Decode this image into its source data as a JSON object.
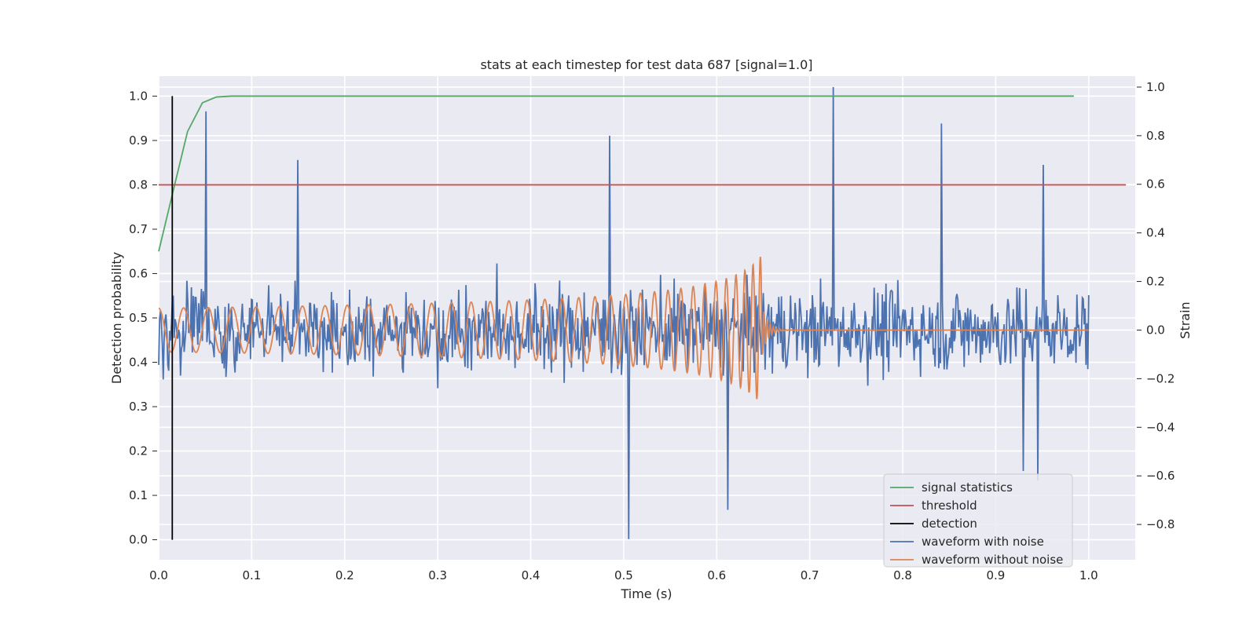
{
  "chart_data": {
    "type": "line",
    "title": "stats at each timestep for test data 687 [signal=1.0]",
    "xlabel": "Time (s)",
    "ylabel": "Detection probability",
    "y2label": "Strain",
    "xlim": [
      0.0,
      1.05
    ],
    "ylim": [
      -0.045,
      1.045
    ],
    "y2lim": [
      -0.945,
      1.045
    ],
    "xticks": [
      0.0,
      0.1,
      0.2,
      0.3,
      0.4,
      0.5,
      0.6,
      0.7,
      0.8,
      0.9,
      1.0
    ],
    "xtick_labels": [
      "0.0",
      "0.1",
      "0.2",
      "0.3",
      "0.4",
      "0.5",
      "0.6",
      "0.7",
      "0.8",
      "0.9",
      "1.0"
    ],
    "yticks": [
      0.0,
      0.1,
      0.2,
      0.3,
      0.4,
      0.5,
      0.6,
      0.7,
      0.8,
      0.9,
      1.0
    ],
    "ytick_labels": [
      "0.0",
      "0.1",
      "0.2",
      "0.3",
      "0.4",
      "0.5",
      "0.6",
      "0.7",
      "0.8",
      "0.9",
      "1.0"
    ],
    "y2ticks": [
      -0.8,
      -0.6,
      -0.4,
      -0.2,
      0.0,
      0.2,
      0.4,
      0.6,
      0.8,
      1.0
    ],
    "y2tick_labels": [
      "−0.8",
      "−0.6",
      "−0.4",
      "−0.2",
      "0.0",
      "0.2",
      "0.4",
      "0.6",
      "0.8",
      "1.0"
    ],
    "grid": true,
    "legend_position": "bottom-right",
    "series": [
      {
        "name": "signal statistics",
        "axis": "left",
        "color": "#55a868",
        "x": [
          0.0,
          0.016,
          0.031,
          0.047,
          0.062,
          0.078,
          0.2,
          0.4,
          0.6,
          0.8,
          0.984
        ],
        "y": [
          0.65,
          0.79,
          0.92,
          0.985,
          0.998,
          1.0,
          1.0,
          1.0,
          1.0,
          1.0,
          1.0
        ]
      },
      {
        "name": "threshold",
        "axis": "left",
        "color": "#c44e52",
        "x": [
          0.0,
          1.04
        ],
        "y": [
          0.8,
          0.8
        ]
      },
      {
        "name": "detection",
        "axis": "left",
        "color": "#000000",
        "x": [
          0.0146,
          0.0146
        ],
        "y": [
          0.0,
          1.0
        ]
      },
      {
        "name": "waveform with noise",
        "axis": "right",
        "color": "#4c72b0",
        "kind": "noisy",
        "x_range": [
          0.0,
          1.0
        ],
        "sample_count": 1024,
        "sigma": 0.17,
        "notable_points": [
          {
            "x": 0.051,
            "y": 0.9
          },
          {
            "x": 0.15,
            "y": 0.7
          },
          {
            "x": 0.485,
            "y": 0.8
          },
          {
            "x": 0.505,
            "y": -0.86
          },
          {
            "x": 0.612,
            "y": -0.74
          },
          {
            "x": 0.725,
            "y": 1.0
          },
          {
            "x": 0.842,
            "y": 0.85
          },
          {
            "x": 0.951,
            "y": 0.68
          },
          {
            "x": 0.93,
            "y": -0.58
          },
          {
            "x": 0.945,
            "y": -0.62
          }
        ]
      },
      {
        "name": "waveform without noise",
        "axis": "right",
        "color": "#dd8452",
        "kind": "chirp",
        "x_range": [
          0.0,
          1.0
        ],
        "merger_time": 0.648,
        "start_frequency": 37,
        "start_amplitude": 0.09,
        "peak_amplitude": 0.35
      }
    ]
  }
}
